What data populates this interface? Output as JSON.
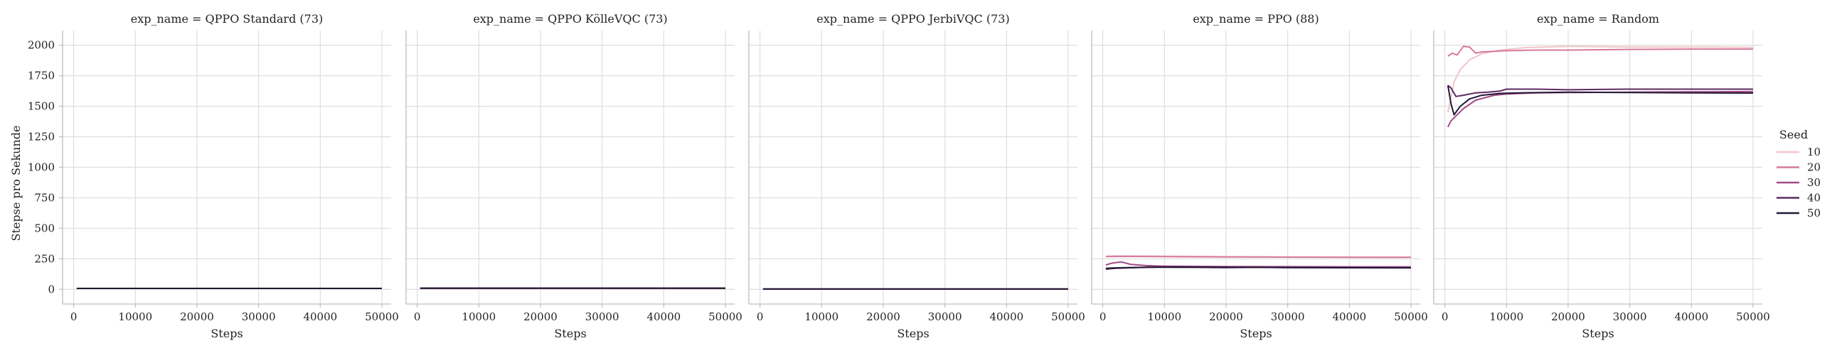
{
  "figure": {
    "ylabel": "Stepse pro Sekunde",
    "legend": {
      "title": "Seed",
      "placement": "right",
      "entries": [
        {
          "label": "10",
          "color": "#f1c6c9"
        },
        {
          "label": "20",
          "color": "#d6799c"
        },
        {
          "label": "30",
          "color": "#a34b87"
        },
        {
          "label": "40",
          "color": "#5e2a62"
        },
        {
          "label": "50",
          "color": "#221835"
        }
      ]
    }
  },
  "chart_data": [
    {
      "type": "line",
      "title": "exp_name = QPPO Standard (73)",
      "xlabel": "Steps",
      "xlim": [
        -1800,
        51500
      ],
      "ylim": [
        -120,
        2120
      ],
      "xticks": [
        0,
        10000,
        20000,
        30000,
        40000,
        50000
      ],
      "yticks": [
        0,
        250,
        500,
        750,
        1000,
        1250,
        1500,
        1750,
        2000
      ],
      "grid": true,
      "series": [
        {
          "name": "10",
          "x": [
            500,
            50000
          ],
          "y": [
            8,
            8
          ]
        },
        {
          "name": "20",
          "x": [
            500,
            50000
          ],
          "y": [
            8,
            8
          ]
        },
        {
          "name": "30",
          "x": [
            500,
            50000
          ],
          "y": [
            8,
            8
          ]
        },
        {
          "name": "40",
          "x": [
            500,
            50000
          ],
          "y": [
            8,
            8
          ]
        },
        {
          "name": "50",
          "x": [
            500,
            50000
          ],
          "y": [
            8,
            8
          ]
        }
      ]
    },
    {
      "type": "line",
      "title": "exp_name = QPPO KölleVQC (73)",
      "xlabel": "Steps",
      "xlim": [
        -1800,
        51500
      ],
      "ylim": [
        -120,
        2120
      ],
      "xticks": [
        0,
        10000,
        20000,
        30000,
        40000,
        50000
      ],
      "yticks": [
        0,
        250,
        500,
        750,
        1000,
        1250,
        1500,
        1750,
        2000
      ],
      "grid": true,
      "series": [
        {
          "name": "10",
          "x": [
            500,
            50000
          ],
          "y": [
            9,
            9
          ]
        },
        {
          "name": "20",
          "x": [
            500,
            50000
          ],
          "y": [
            9,
            9
          ]
        },
        {
          "name": "30",
          "x": [
            500,
            50000
          ],
          "y": [
            9,
            9
          ]
        },
        {
          "name": "40",
          "x": [
            500,
            50000
          ],
          "y": [
            9,
            9
          ]
        },
        {
          "name": "50",
          "x": [
            500,
            50000
          ],
          "y": [
            9,
            9
          ]
        }
      ]
    },
    {
      "type": "line",
      "title": "exp_name = QPPO JerbiVQC (73)",
      "xlabel": "Steps",
      "xlim": [
        -1800,
        51500
      ],
      "ylim": [
        -120,
        2120
      ],
      "xticks": [
        0,
        10000,
        20000,
        30000,
        40000,
        50000
      ],
      "yticks": [
        0,
        250,
        500,
        750,
        1000,
        1250,
        1500,
        1750,
        2000
      ],
      "grid": true,
      "series": [
        {
          "name": "10",
          "x": [
            500,
            50000
          ],
          "y": [
            3,
            3
          ]
        },
        {
          "name": "20",
          "x": [
            500,
            50000
          ],
          "y": [
            3,
            3
          ]
        },
        {
          "name": "30",
          "x": [
            500,
            50000
          ],
          "y": [
            3,
            3
          ]
        },
        {
          "name": "40",
          "x": [
            500,
            50000
          ],
          "y": [
            3,
            3
          ]
        },
        {
          "name": "50",
          "x": [
            500,
            50000
          ],
          "y": [
            3,
            3
          ]
        }
      ]
    },
    {
      "type": "line",
      "title": "exp_name = PPO (88)",
      "xlabel": "Steps",
      "xlim": [
        -1800,
        51500
      ],
      "ylim": [
        -120,
        2120
      ],
      "xticks": [
        0,
        10000,
        20000,
        30000,
        40000,
        50000
      ],
      "yticks": [
        0,
        250,
        500,
        750,
        1000,
        1250,
        1500,
        1750,
        2000
      ],
      "grid": true,
      "series": [
        {
          "name": "10",
          "x": [
            500,
            2000,
            5000,
            10000,
            20000,
            30000,
            40000,
            50000
          ],
          "y": [
            272,
            275,
            274,
            272,
            268,
            266,
            265,
            264
          ]
        },
        {
          "name": "20",
          "x": [
            500,
            2000,
            5000,
            10000,
            20000,
            30000,
            40000,
            50000
          ],
          "y": [
            268,
            270,
            270,
            268,
            265,
            264,
            263,
            262
          ]
        },
        {
          "name": "30",
          "x": [
            500,
            1500,
            3000,
            4500,
            7000,
            10000,
            20000,
            30000,
            40000,
            50000
          ],
          "y": [
            200,
            215,
            225,
            205,
            195,
            190,
            187,
            186,
            185,
            185
          ]
        },
        {
          "name": "40",
          "x": [
            500,
            2000,
            4000,
            7000,
            10000,
            15000,
            20000,
            25000,
            30000,
            40000,
            50000
          ],
          "y": [
            165,
            172,
            176,
            180,
            181,
            180,
            178,
            180,
            178,
            177,
            176
          ]
        },
        {
          "name": "50",
          "x": [
            500,
            2000,
            4000,
            7000,
            10000,
            15000,
            20000,
            25000,
            30000,
            40000,
            50000
          ],
          "y": [
            172,
            176,
            178,
            181,
            183,
            182,
            180,
            181,
            179,
            178,
            177
          ]
        }
      ]
    },
    {
      "type": "line",
      "title": "exp_name = Random",
      "xlabel": "Steps",
      "xlim": [
        -1800,
        51500
      ],
      "ylim": [
        -120,
        2120
      ],
      "xticks": [
        0,
        10000,
        20000,
        30000,
        40000,
        50000
      ],
      "yticks": [
        0,
        250,
        500,
        750,
        1000,
        1250,
        1500,
        1750,
        2000
      ],
      "grid": true,
      "series": [
        {
          "name": "10",
          "x": [
            500,
            1500,
            2500,
            4000,
            6000,
            9000,
            13000,
            20000,
            30000,
            40000,
            50000
          ],
          "y": [
            1450,
            1700,
            1800,
            1880,
            1930,
            1960,
            1980,
            1990,
            1985,
            1985,
            1982
          ]
        },
        {
          "name": "20",
          "x": [
            500,
            1200,
            2000,
            3000,
            4000,
            5000,
            6000,
            8000,
            10000,
            15000,
            20000,
            30000,
            40000,
            50000
          ],
          "y": [
            1910,
            1935,
            1920,
            1990,
            1985,
            1935,
            1945,
            1950,
            1955,
            1960,
            1960,
            1965,
            1968,
            1968
          ]
        },
        {
          "name": "30",
          "x": [
            500,
            1000,
            2000,
            3000,
            5000,
            8000,
            10000,
            15000,
            20000,
            30000,
            40000,
            50000
          ],
          "y": [
            1330,
            1380,
            1430,
            1480,
            1550,
            1590,
            1600,
            1610,
            1612,
            1615,
            1618,
            1620
          ]
        },
        {
          "name": "40",
          "x": [
            500,
            1000,
            1800,
            3000,
            5000,
            7000,
            9000,
            10000,
            15000,
            20000,
            30000,
            40000,
            50000
          ],
          "y": [
            1670,
            1650,
            1580,
            1590,
            1610,
            1615,
            1625,
            1640,
            1640,
            1635,
            1640,
            1640,
            1640
          ]
        },
        {
          "name": "50",
          "x": [
            500,
            1000,
            1500,
            2500,
            4000,
            6000,
            9000,
            12000,
            20000,
            30000,
            40000,
            50000
          ],
          "y": [
            1670,
            1520,
            1430,
            1500,
            1560,
            1590,
            1605,
            1610,
            1615,
            1612,
            1610,
            1608
          ]
        }
      ]
    }
  ]
}
